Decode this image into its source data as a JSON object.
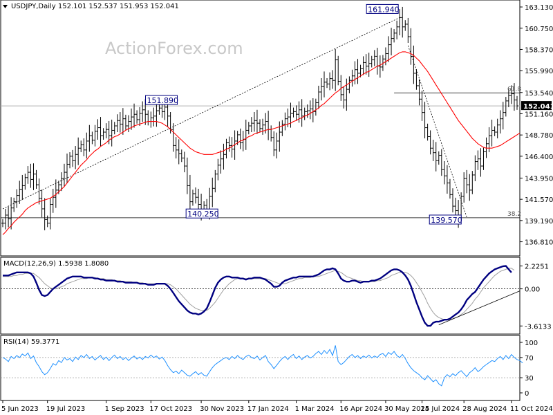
{
  "header": {
    "main": "USDJPY,Daily  152.101 152.537 151.953 152.041",
    "macd": "MACD(12,26,9) 1.5938 1.8080",
    "rsi": "RSI(14) 59.3771"
  },
  "watermark": "ActionForex.com",
  "colors": {
    "price": "#000000",
    "ma": "#ff0000",
    "macd": "#000080",
    "signal": "#a0a0a0",
    "rsi": "#1e90ff",
    "last_price_box": "#000000"
  },
  "price_axis": {
    "ticks": [
      "163.130",
      "160.750",
      "158.370",
      "155.990",
      "153.540",
      "151.160",
      "148.780",
      "146.400",
      "143.950",
      "141.570",
      "139.190",
      "136.810"
    ],
    "tick_values": [
      163.13,
      160.75,
      158.37,
      155.99,
      153.54,
      151.16,
      148.78,
      146.4,
      143.95,
      141.57,
      139.19,
      136.81
    ],
    "last_price": "152.041",
    "last_price_value": 152.041,
    "range": [
      136.0,
      163.6
    ]
  },
  "annotations": {
    "high_1": {
      "label": "151.890",
      "value": 151.89,
      "index": 58
    },
    "low_1": {
      "label": "140.250",
      "value": 140.25,
      "index": 73
    },
    "high_2": {
      "label": "161.940",
      "value": 161.94,
      "index": 142
    },
    "low_2": {
      "label": "139.570",
      "value": 139.57,
      "index": 166
    },
    "fib_618": {
      "label": "61.8",
      "value": 153.5
    },
    "fib_382": {
      "label": "38.2",
      "value": 139.5
    }
  },
  "macd_axis": {
    "ticks": [
      "2.2251",
      "0.00",
      "-3.6133"
    ],
    "tick_values": [
      2.2251,
      0.0,
      -3.6133
    ],
    "range": [
      -4.2,
      2.8
    ]
  },
  "rsi_axis": {
    "ticks": [
      "100",
      "70",
      "30",
      "0"
    ],
    "tick_values": [
      100,
      70,
      30,
      0
    ],
    "range": [
      0,
      100
    ]
  },
  "x_axis": {
    "labels": [
      "5 Jun 2023",
      "19 Jul 2023",
      "1 Sep 2023",
      "17 Oct 2023",
      "30 Nov 2023",
      "17 Jan 2024",
      "1 Mar 2024",
      "16 Apr 2024",
      "30 May 2024",
      "15 Jul 2024",
      "28 Aug 2024",
      "11 Oct 2024"
    ],
    "label_index": [
      0,
      16,
      37,
      53,
      71,
      88,
      105,
      121,
      137,
      150,
      165,
      182
    ]
  },
  "chart_data": {
    "type": "line",
    "title": "USDJPY,Daily",
    "series": [
      {
        "name": "USDJPY",
        "values": [
          138.9,
          139.8,
          139.4,
          140.6,
          141.3,
          142.0,
          142.7,
          143.1,
          144.0,
          144.6,
          143.8,
          144.4,
          143.2,
          141.7,
          140.5,
          139.3,
          138.9,
          141.0,
          141.8,
          142.6,
          143.2,
          143.9,
          144.6,
          145.5,
          146.4,
          145.9,
          146.6,
          147.3,
          147.7,
          147.1,
          148.1,
          148.7,
          148.2,
          149.2,
          149.6,
          148.7,
          149.1,
          149.4,
          148.7,
          149.3,
          149.8,
          150.4,
          150.0,
          150.6,
          149.8,
          150.3,
          150.8,
          151.1,
          150.5,
          151.2,
          151.6,
          151.1,
          150.3,
          150.7,
          150.9,
          151.5,
          151.8,
          151.4,
          151.9,
          150.9,
          149.4,
          147.6,
          147.1,
          146.7,
          146.2,
          145.3,
          143.1,
          141.3,
          142.2,
          141.8,
          141.0,
          140.4,
          140.9,
          140.25,
          141.9,
          142.8,
          144.4,
          145.4,
          146.1,
          146.6,
          147.9,
          147.6,
          147.2,
          148.1,
          148.8,
          147.9,
          148.3,
          149.3,
          149.8,
          150.1,
          150.4,
          150.1,
          149.5,
          149.9,
          150.3,
          149.4,
          148.5,
          147.1,
          148.1,
          149.1,
          150.0,
          150.6,
          150.8,
          151.2,
          151.4,
          151.1,
          151.6,
          150.9,
          151.4,
          151.5,
          151.7,
          151.4,
          152.4,
          153.6,
          154.2,
          154.7,
          154.5,
          155.1,
          154.9,
          157.2,
          154.8,
          153.3,
          152.7,
          153.9,
          154.9,
          155.4,
          156.1,
          155.7,
          156.2,
          156.9,
          156.5,
          156.8,
          157.2,
          157.6,
          156.5,
          156.4,
          157.3,
          157.9,
          158.9,
          159.6,
          160.2,
          160.9,
          161.94,
          160.9,
          161.2,
          159.8,
          157.6,
          155.7,
          154.3,
          152.8,
          151.3,
          149.6,
          148.6,
          147.3,
          146.8,
          145.9,
          146.5,
          144.9,
          144.2,
          143.4,
          142.1,
          140.8,
          140.3,
          139.57,
          141.9,
          143.9,
          143.2,
          142.6,
          144.3,
          145.8,
          146.1,
          145.3,
          146.9,
          147.8,
          148.7,
          149.3,
          149.1,
          149.9,
          150.6,
          151.3,
          152.6,
          153.2,
          153.4,
          152.7,
          152.041
        ],
        "color": "#000000"
      },
      {
        "name": "MA",
        "values": [
          137.6,
          137.9,
          138.3,
          138.6,
          139.0,
          139.3,
          139.6,
          139.9,
          140.3,
          140.6,
          140.8,
          141.0,
          141.2,
          141.3,
          141.4,
          141.5,
          141.6,
          141.7,
          141.9,
          142.1,
          142.4,
          142.7,
          143.0,
          143.4,
          143.8,
          144.2,
          144.6,
          145.0,
          145.4,
          145.7,
          146.0,
          146.4,
          146.7,
          147.0,
          147.2,
          147.5,
          147.7,
          147.9,
          148.2,
          148.4,
          148.6,
          148.7,
          148.9,
          149.1,
          149.3,
          149.5,
          149.6,
          149.8,
          149.9,
          150.0,
          150.1,
          150.2,
          150.3,
          150.3,
          150.3,
          150.3,
          150.2,
          150.1,
          149.9,
          149.7,
          149.4,
          149.1,
          148.8,
          148.5,
          148.2,
          147.9,
          147.6,
          147.3,
          147.1,
          146.9,
          146.8,
          146.7,
          146.6,
          146.6,
          146.6,
          146.6,
          146.7,
          146.8,
          146.9,
          147.0,
          147.2,
          147.3,
          147.5,
          147.7,
          147.9,
          148.1,
          148.2,
          148.4,
          148.6,
          148.7,
          148.9,
          149.0,
          149.1,
          149.2,
          149.3,
          149.4,
          149.4,
          149.5,
          149.6,
          149.7,
          149.8,
          149.9,
          150.0,
          150.1,
          150.3,
          150.4,
          150.6,
          150.7,
          150.9,
          151.0,
          151.2,
          151.4,
          151.6,
          151.8,
          152.1,
          152.3,
          152.6,
          152.9,
          153.2,
          153.5,
          153.7,
          154.0,
          154.2,
          154.4,
          154.6,
          154.8,
          155.0,
          155.2,
          155.4,
          155.6,
          155.8,
          155.9,
          156.1,
          156.3,
          156.5,
          156.6,
          156.8,
          157.0,
          157.2,
          157.4,
          157.6,
          157.8,
          158.0,
          158.1,
          158.1,
          158.0,
          157.9,
          157.7,
          157.4,
          157.1,
          156.7,
          156.3,
          155.9,
          155.4,
          154.9,
          154.4,
          153.9,
          153.4,
          152.9,
          152.4,
          151.9,
          151.4,
          150.9,
          150.4,
          150.0,
          149.6,
          149.2,
          148.8,
          148.4,
          148.1,
          147.8,
          147.6,
          147.4,
          147.3,
          147.3,
          147.3,
          147.4,
          147.5,
          147.6,
          147.8,
          148.0,
          148.2,
          148.4,
          148.6,
          148.8,
          149.0
        ],
        "color": "#ff0000"
      },
      {
        "name": "MACD",
        "values": [
          1.3,
          1.3,
          1.3,
          1.4,
          1.5,
          1.6,
          1.6,
          1.6,
          1.6,
          1.6,
          1.5,
          1.2,
          0.6,
          -0.1,
          -0.6,
          -0.7,
          -0.6,
          -0.3,
          0.0,
          0.2,
          0.4,
          0.6,
          0.8,
          1.0,
          1.1,
          1.2,
          1.2,
          1.2,
          1.2,
          1.1,
          1.1,
          1.1,
          1.1,
          1.0,
          1.0,
          0.9,
          0.9,
          0.8,
          0.8,
          0.8,
          0.8,
          0.7,
          0.7,
          0.7,
          0.6,
          0.6,
          0.6,
          0.6,
          0.6,
          0.5,
          0.5,
          0.5,
          0.4,
          0.4,
          0.4,
          0.5,
          0.5,
          0.5,
          0.5,
          0.3,
          0.0,
          -0.4,
          -0.8,
          -1.2,
          -1.5,
          -1.8,
          -2.1,
          -2.3,
          -2.4,
          -2.4,
          -2.5,
          -2.4,
          -2.2,
          -1.9,
          -1.3,
          -0.6,
          0.1,
          0.6,
          0.9,
          1.1,
          1.2,
          1.2,
          1.1,
          1.1,
          1.1,
          1.0,
          1.0,
          0.9,
          1.0,
          1.0,
          1.1,
          1.1,
          1.1,
          1.0,
          0.9,
          0.7,
          0.5,
          0.2,
          0.2,
          0.3,
          0.6,
          0.8,
          0.9,
          1.0,
          1.1,
          1.1,
          1.2,
          1.2,
          1.2,
          1.2,
          1.2,
          1.2,
          1.3,
          1.4,
          1.6,
          1.8,
          1.9,
          1.9,
          2.0,
          1.9,
          1.5,
          1.0,
          0.8,
          0.7,
          0.7,
          0.8,
          0.8,
          0.7,
          0.6,
          0.7,
          0.7,
          0.7,
          0.8,
          0.8,
          0.9,
          1.0,
          1.2,
          1.4,
          1.6,
          1.8,
          1.9,
          1.9,
          1.8,
          1.6,
          1.3,
          0.9,
          0.3,
          -0.5,
          -1.3,
          -2.0,
          -2.7,
          -3.3,
          -3.6,
          -3.6,
          -3.3,
          -3.2,
          -3.2,
          -3.1,
          -3.0,
          -3.0,
          -2.9,
          -2.7,
          -2.5,
          -2.3,
          -2.0,
          -1.6,
          -1.1,
          -0.8,
          -0.5,
          -0.3,
          0.1,
          0.5,
          0.9,
          1.2,
          1.5,
          1.7,
          1.9,
          2.0,
          2.1,
          2.2,
          2.2251,
          1.9,
          1.5938
        ],
        "color": "#000080"
      },
      {
        "name": "Signal",
        "values": [
          1.2,
          1.2,
          1.2,
          1.2,
          1.3,
          1.3,
          1.4,
          1.4,
          1.5,
          1.5,
          1.5,
          1.5,
          1.3,
          1.1,
          0.8,
          0.5,
          0.3,
          0.1,
          0.0,
          0.0,
          0.1,
          0.2,
          0.3,
          0.5,
          0.6,
          0.7,
          0.8,
          0.9,
          1.0,
          1.0,
          1.0,
          1.1,
          1.1,
          1.1,
          1.0,
          1.0,
          1.0,
          0.9,
          0.9,
          0.9,
          0.8,
          0.8,
          0.8,
          0.7,
          0.7,
          0.7,
          0.7,
          0.6,
          0.6,
          0.6,
          0.6,
          0.5,
          0.5,
          0.5,
          0.5,
          0.5,
          0.5,
          0.5,
          0.5,
          0.5,
          0.4,
          0.2,
          0.0,
          -0.3,
          -0.6,
          -0.9,
          -1.2,
          -1.5,
          -1.7,
          -1.9,
          -2.0,
          -2.1,
          -2.1,
          -2.1,
          -1.9,
          -1.6,
          -1.3,
          -0.9,
          -0.5,
          -0.1,
          0.2,
          0.5,
          0.7,
          0.9,
          1.0,
          1.0,
          1.0,
          1.0,
          1.0,
          1.0,
          1.0,
          1.0,
          1.0,
          1.0,
          1.0,
          0.9,
          0.8,
          0.7,
          0.6,
          0.5,
          0.5,
          0.5,
          0.6,
          0.7,
          0.8,
          0.9,
          1.0,
          1.0,
          1.1,
          1.1,
          1.1,
          1.2,
          1.2,
          1.2,
          1.3,
          1.4,
          1.5,
          1.6,
          1.7,
          1.8,
          1.7,
          1.6,
          1.4,
          1.2,
          1.1,
          1.0,
          0.9,
          0.8,
          0.8,
          0.7,
          0.7,
          0.7,
          0.7,
          0.7,
          0.8,
          0.8,
          0.9,
          1.0,
          1.1,
          1.3,
          1.4,
          1.5,
          1.6,
          1.6,
          1.6,
          1.5,
          1.3,
          1.0,
          0.6,
          0.2,
          -0.3,
          -0.8,
          -1.4,
          -1.9,
          -2.3,
          -2.6,
          -2.8,
          -2.9,
          -3.0,
          -3.0,
          -3.0,
          -2.9,
          -2.8,
          -2.7,
          -2.5,
          -2.3,
          -2.0,
          -1.7,
          -1.4,
          -1.0,
          -0.7,
          -0.3,
          0.1,
          0.4,
          0.7,
          1.0,
          1.3,
          1.5,
          1.7,
          1.8,
          1.9,
          2.0,
          2.0,
          1.808
        ],
        "color": "#a0a0a0"
      },
      {
        "name": "RSI",
        "values": [
          70,
          67,
          62,
          72,
          68,
          74,
          70,
          77,
          73,
          79,
          68,
          73,
          60,
          52,
          42,
          36,
          40,
          48,
          58,
          55,
          64,
          60,
          70,
          65,
          68,
          62,
          71,
          66,
          74,
          70,
          76,
          68,
          72,
          65,
          70,
          74,
          66,
          71,
          64,
          70,
          75,
          68,
          72,
          66,
          70,
          64,
          69,
          73,
          67,
          71,
          66,
          72,
          69,
          75,
          70,
          73,
          67,
          71,
          64,
          54,
          46,
          40,
          43,
          38,
          45,
          40,
          35,
          33,
          38,
          42,
          36,
          40,
          35,
          33,
          42,
          50,
          56,
          60,
          64,
          68,
          70,
          66,
          72,
          68,
          74,
          69,
          66,
          72,
          75,
          70,
          68,
          73,
          65,
          70,
          74,
          62,
          56,
          48,
          55,
          62,
          68,
          72,
          66,
          72,
          76,
          68,
          73,
          66,
          71,
          74,
          69,
          72,
          78,
          82,
          76,
          84,
          78,
          86,
          74,
          94,
          62,
          56,
          60,
          66,
          72,
          76,
          70,
          74,
          68,
          73,
          70,
          75,
          69,
          73,
          70,
          76,
          78,
          72,
          80,
          76,
          82,
          74,
          70,
          76,
          68,
          58,
          50,
          44,
          40,
          36,
          30,
          26,
          34,
          28,
          22,
          26,
          18,
          14,
          30,
          36,
          32,
          38,
          34,
          40,
          44,
          38,
          32,
          40,
          44,
          50,
          42,
          46,
          52,
          56,
          60,
          64,
          62,
          68,
          72,
          66,
          74,
          68,
          76,
          70,
          66,
          64,
          59.3771
        ],
        "color": "#1e90ff"
      }
    ],
    "ylim": [
      136.0,
      163.6
    ]
  }
}
